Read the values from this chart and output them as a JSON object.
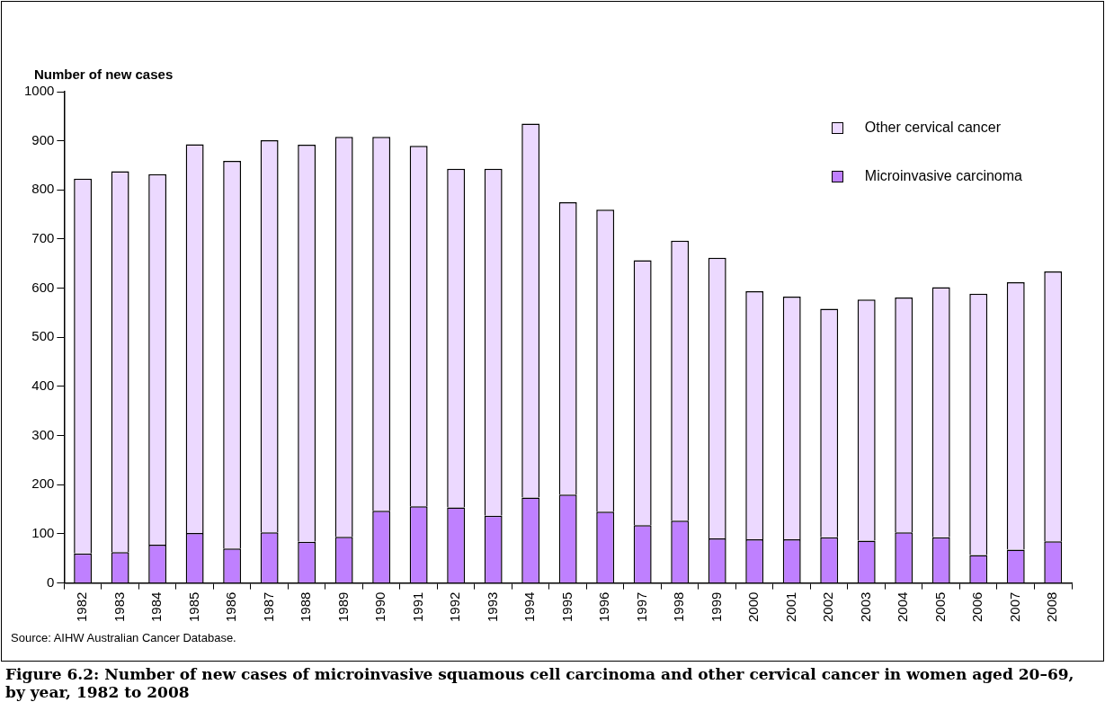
{
  "chart_data": {
    "type": "bar",
    "title": "Figure 6.2: Number of new cases of microinvasive squamous cell carcinoma and other cervical cancer in women aged 20–69, by year, 1982 to 2008",
    "ylabel": "Number of new cases",
    "annotations": [
      "Source: AIHW Australian Cancer Database."
    ],
    "categories": [
      "1982",
      "1983",
      "1984",
      "1985",
      "1986",
      "1987",
      "1988",
      "1989",
      "1990",
      "1991",
      "1992",
      "1993",
      "1994",
      "1995",
      "1996",
      "1997",
      "1998",
      "1999",
      "2000",
      "2001",
      "2002",
      "2003",
      "2004",
      "2005",
      "2006",
      "2007",
      "2008"
    ],
    "stacked": true,
    "ylim": [
      0,
      1000
    ],
    "yticks": [
      0,
      100,
      200,
      300,
      400,
      500,
      600,
      700,
      800,
      900,
      1000
    ],
    "grid": false,
    "legend": "top right",
    "series": [
      {
        "name": "Microinvasive carcinoma",
        "color": "#bf80ff",
        "values": [
          60,
          63,
          78,
          102,
          70,
          103,
          84,
          94,
          147,
          156,
          154,
          137,
          174,
          180,
          145,
          118,
          127,
          91,
          89,
          89,
          93,
          86,
          103,
          93,
          57,
          68,
          85
        ]
      },
      {
        "name": "Other cervical cancer",
        "color": "#ecd9ff",
        "values": [
          763,
          775,
          754,
          791,
          789,
          798,
          808,
          814,
          761,
          734,
          689,
          706,
          761,
          595,
          615,
          539,
          570,
          571,
          505,
          494,
          465,
          491,
          478,
          509,
          532,
          544,
          549
        ]
      }
    ]
  }
}
